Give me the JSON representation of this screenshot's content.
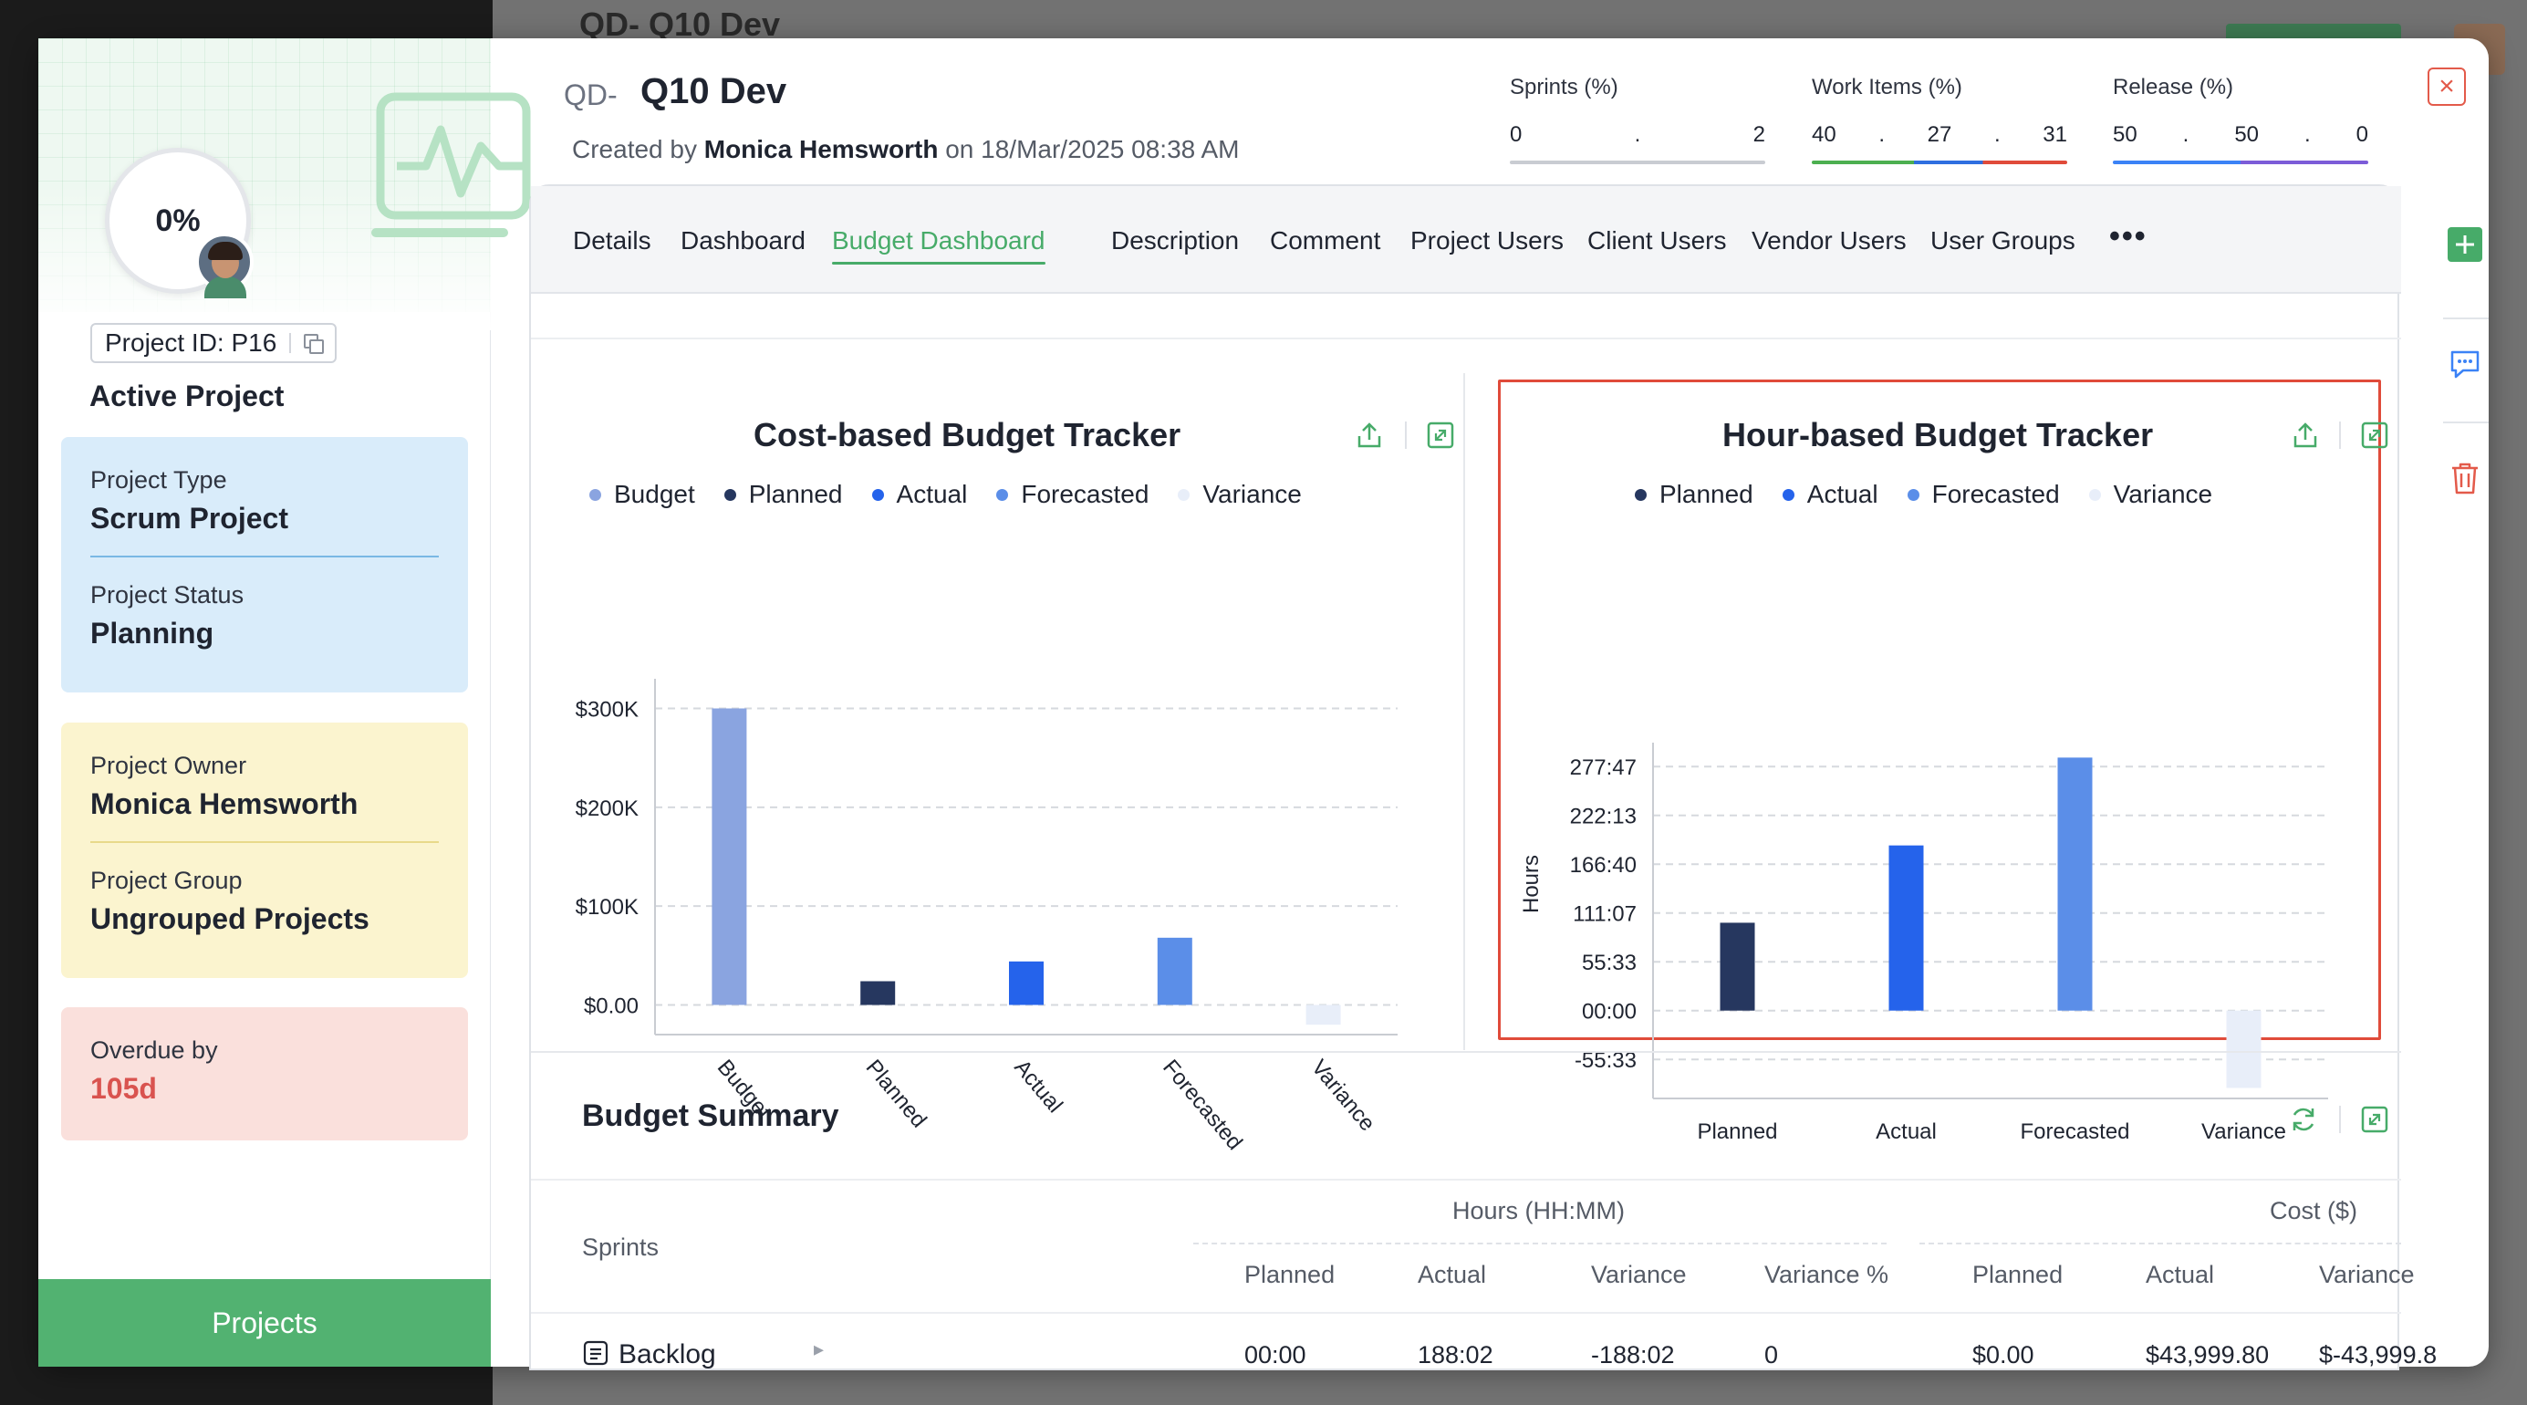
{
  "background": {
    "title": "QD- Q10 Dev"
  },
  "left_panel": {
    "progress": "0%",
    "project_id_label": "Project ID: P16",
    "status_heading": "Active Project",
    "project_type": {
      "label": "Project Type",
      "value": "Scrum Project"
    },
    "project_status": {
      "label": "Project Status",
      "value": "Planning"
    },
    "project_owner": {
      "label": "Project Owner",
      "value": "Monica Hemsworth"
    },
    "project_group": {
      "label": "Project Group",
      "value": "Ungrouped Projects"
    },
    "overdue": {
      "label": "Overdue by",
      "value": "105d"
    },
    "projects_button": "Projects"
  },
  "header": {
    "prefix": "QD-",
    "title": "Q10 Dev",
    "created_by_label": "Created by",
    "created_by_name": "Monica Hemsworth",
    "created_on": "on 18/Mar/2025 08:38 AM",
    "metrics": [
      {
        "label": "Sprints (%)",
        "values": [
          "0",
          ".",
          "2"
        ],
        "bar_colors": [
          "#c9ccd2"
        ]
      },
      {
        "label": "Work Items (%)",
        "values": [
          "40",
          ".",
          "27",
          ".",
          "31"
        ],
        "bar_colors": [
          "#4caf50",
          "#2f6fe0",
          "#e04b3a"
        ]
      },
      {
        "label": "Release (%)",
        "values": [
          "50",
          ".",
          "50",
          ".",
          "0"
        ],
        "bar_colors": [
          "#3b82f6",
          "#7c5cd8"
        ]
      }
    ]
  },
  "tabs": {
    "items": [
      "Details",
      "Dashboard",
      "Budget Dashboard",
      "Description",
      "Comment",
      "Project Users",
      "Client Users",
      "Vendor Users",
      "User Groups"
    ],
    "active": "Budget Dashboard",
    "more": "•••"
  },
  "colors": {
    "budget": "#8aa4e0",
    "planned": "#26375f",
    "actual": "#2563eb",
    "forecasted": "#5b8ee8",
    "variance": "#e8eef9",
    "accent": "#47ab69"
  },
  "chart_data": [
    {
      "type": "bar",
      "title": "Cost-based Budget Tracker",
      "categories": [
        "Budget",
        "Planned",
        "Actual",
        "Forecasted",
        "Variance"
      ],
      "values": [
        300000,
        24000,
        44000,
        68000,
        -20000
      ],
      "legend": [
        "Budget",
        "Planned",
        "Actual",
        "Forecasted",
        "Variance"
      ],
      "y_ticks": [
        "$300K",
        "$200K",
        "$100K",
        "$0.00"
      ],
      "ylim": [
        -30000,
        330000
      ],
      "grid": true,
      "legend_position": "top"
    },
    {
      "type": "bar",
      "title": "Hour-based Budget Tracker",
      "categories": [
        "Planned",
        "Actual",
        "Forecasted",
        "Variance"
      ],
      "values": [
        100,
        188,
        288,
        -88
      ],
      "legend": [
        "Planned",
        "Actual",
        "Forecasted",
        "Variance"
      ],
      "ylabel": "Hours",
      "y_ticks": [
        "277:47",
        "222:13",
        "166:40",
        "111:07",
        "55:33",
        "00:00",
        "-55:33"
      ],
      "y_tick_values": [
        277.78,
        222.22,
        166.67,
        111.11,
        55.56,
        0,
        -55.56
      ],
      "ylim": [
        -100,
        305
      ],
      "grid": true,
      "legend_position": "top"
    }
  ],
  "summary": {
    "title": "Budget Summary",
    "sprints_header": "Sprints",
    "hours_group": "Hours (HH:MM)",
    "cost_group": "Cost ($)",
    "columns": [
      "Planned",
      "Actual",
      "Variance",
      "Variance %",
      "Planned",
      "Actual",
      "Variance"
    ],
    "rows": [
      {
        "name": "Backlog",
        "values": [
          "00:00",
          "188:02",
          "-188:02",
          "0",
          "$0.00",
          "$43,999.80",
          "$-43,999.8"
        ]
      }
    ]
  }
}
